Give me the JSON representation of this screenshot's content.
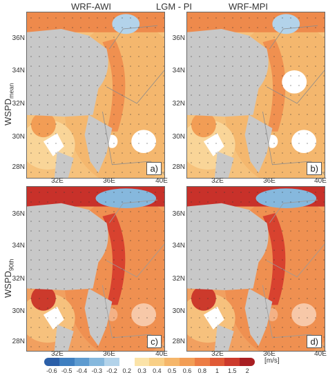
{
  "header": {
    "left": "WRF-AWI",
    "center": "LGM - PI",
    "right": "WRF-MPI"
  },
  "rows": {
    "top_main": "WSPD",
    "top_sub": "mean",
    "bottom_main": "WSPD",
    "bottom_sub": "90th"
  },
  "panels": [
    {
      "label": "a)"
    },
    {
      "label": "b)"
    },
    {
      "label": "c)"
    },
    {
      "label": "d)"
    }
  ],
  "axes": {
    "lat_ticks": [
      "36N",
      "34N",
      "32N",
      "30N",
      "28N"
    ],
    "lon_ticks": [
      "32E",
      "36E",
      "40E"
    ]
  },
  "colorbar": {
    "ticks": [
      "-0.6",
      "-0.5",
      "-0.4",
      "-0.3",
      "-0.2",
      "0.2",
      "0.3",
      "0.4",
      "0.5",
      "0.6",
      "0.8",
      "1",
      "1.5",
      "2"
    ],
    "colors": [
      "#2b5fa8",
      "#3f7fc0",
      "#5e9bd0",
      "#86b8dd",
      "#b3d3ea",
      "#ffffff",
      "#fbe3a8",
      "#f8cf86",
      "#f5b66a",
      "#f29d55",
      "#ec7c44",
      "#e05a36",
      "#cc3a2c",
      "#a81e22"
    ],
    "unit": "[m/s]"
  }
}
